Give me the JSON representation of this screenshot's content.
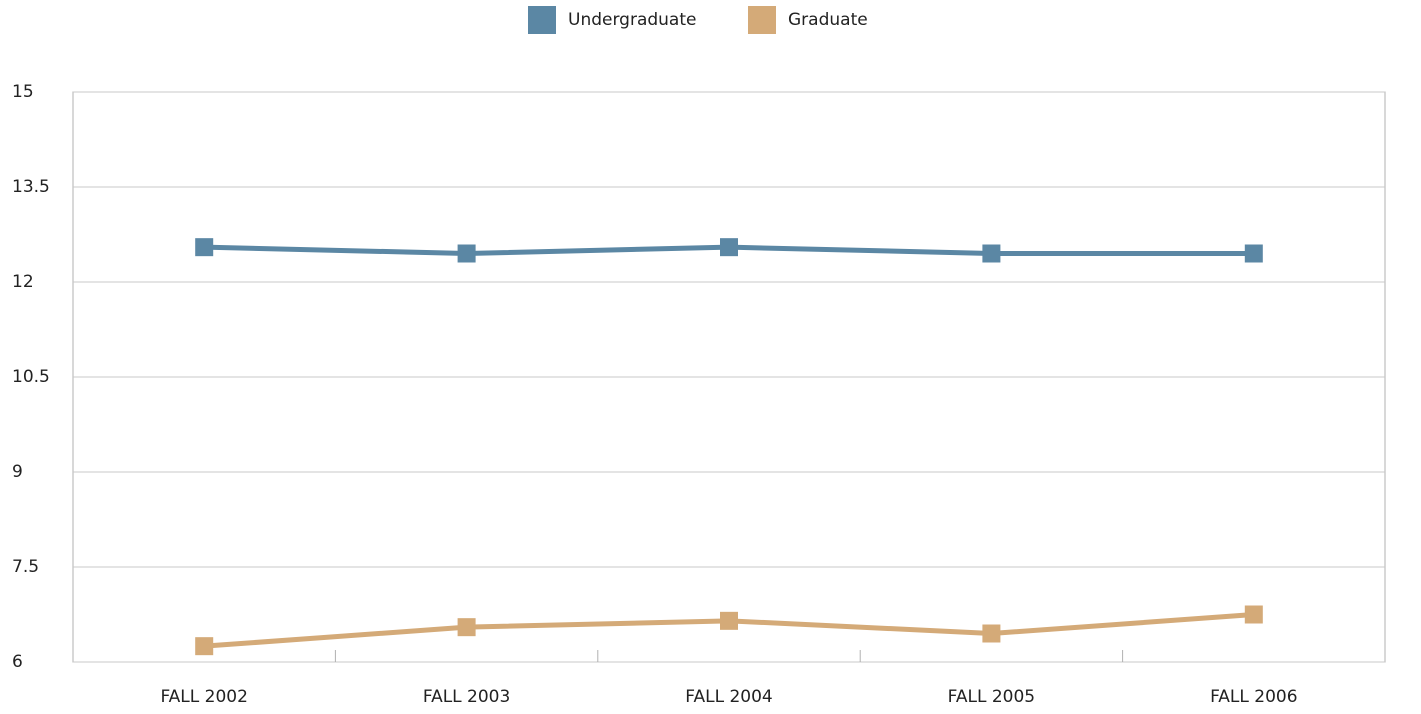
{
  "chart_data": {
    "type": "line",
    "categories": [
      "FALL 2002",
      "FALL 2003",
      "FALL 2004",
      "FALL 2005",
      "FALL 2006"
    ],
    "series": [
      {
        "name": "Undergraduate",
        "color": "#5b87a4",
        "values": [
          12.55,
          12.45,
          12.55,
          12.45,
          12.45
        ]
      },
      {
        "name": "Graduate",
        "color": "#d4aa78",
        "values": [
          6.25,
          6.55,
          6.65,
          6.45,
          6.75
        ]
      }
    ],
    "ylim": [
      6,
      15
    ],
    "yticks": [
      6,
      7.5,
      9,
      10.5,
      12,
      13.5,
      15
    ],
    "grid": true,
    "legend": "top"
  }
}
